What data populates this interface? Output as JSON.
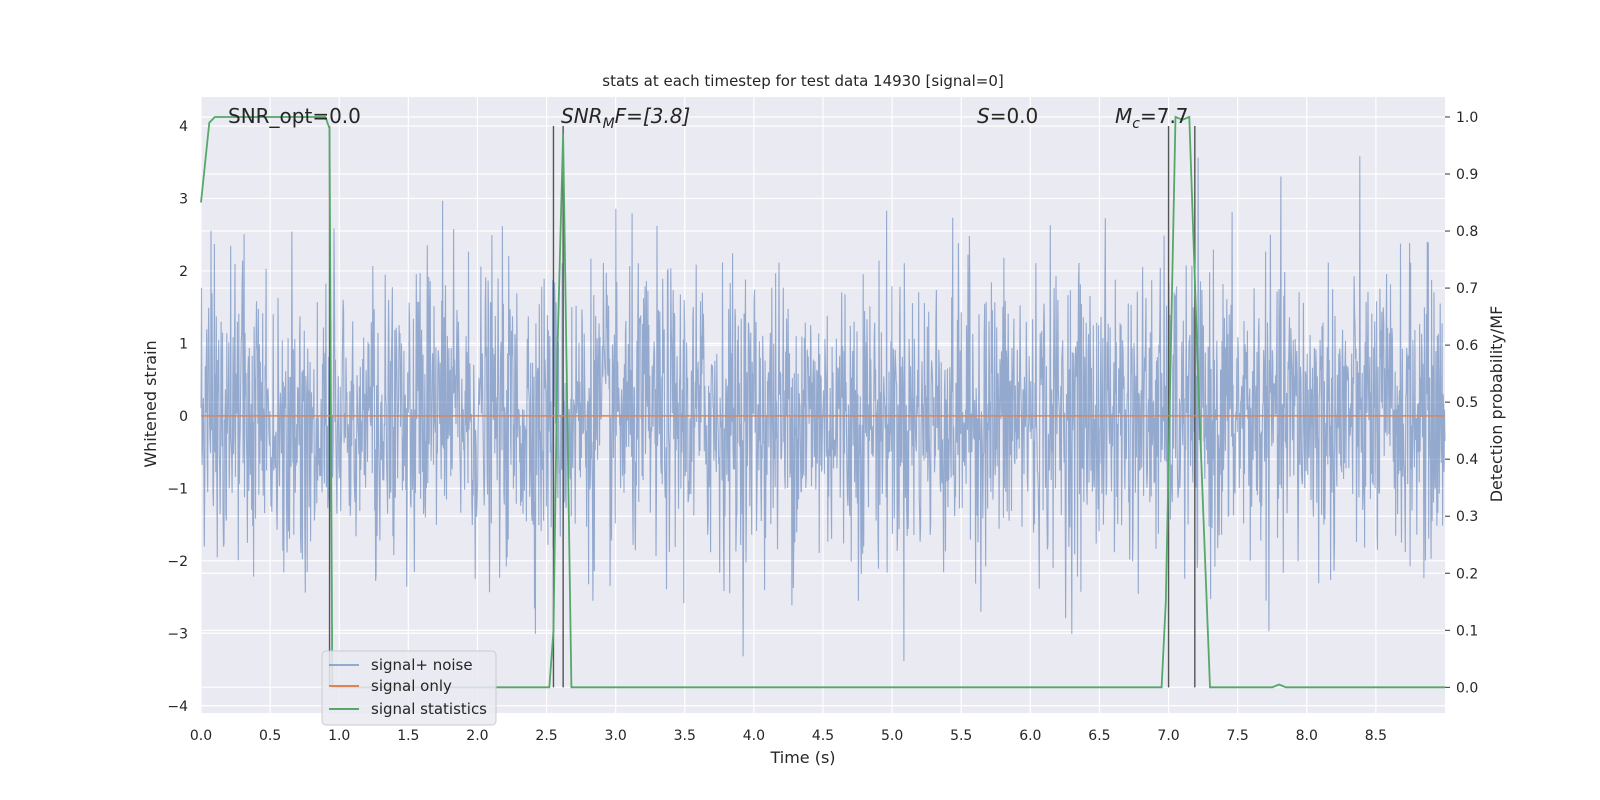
{
  "chart_data": {
    "type": "line",
    "title": "stats at each timestep for test data 14930 [signal=0]",
    "xlabel": "Time (s)",
    "ylabel": "Whitened strain",
    "ylabel_right": "Detection probability/MF",
    "xlim": [
      0,
      9
    ],
    "ylim": [
      -4.1,
      4.4
    ],
    "ylim_right": [
      -0.045,
      1.035
    ],
    "x_ticks": [
      "0.0",
      "0.5",
      "1.0",
      "1.5",
      "2.0",
      "2.5",
      "3.0",
      "3.5",
      "4.0",
      "4.5",
      "5.0",
      "5.5",
      "6.0",
      "6.5",
      "7.0",
      "7.5",
      "8.0",
      "8.5"
    ],
    "y_ticks": [
      "4",
      "3",
      "2",
      "1",
      "0",
      "−1",
      "−2",
      "−3",
      "−4"
    ],
    "y_ticks_right": [
      "1.0",
      "0.9",
      "0.8",
      "0.7",
      "0.6",
      "0.5",
      "0.4",
      "0.3",
      "0.2",
      "0.1",
      "0.0"
    ],
    "grid": true,
    "legend_position": "lower-left",
    "annotations": {
      "snr_opt": "SNR_opt=0.0",
      "snr_mf_main": "SNR",
      "snr_mf_sub": "M",
      "snr_mf_rest": "F=[3.8]",
      "s_main": "S",
      "s_rest": "=0.0",
      "mc_main": "M",
      "mc_sub": "c",
      "mc_rest": "=7.7"
    },
    "series": [
      {
        "name": "signal+ noise",
        "color": "#4c72b0",
        "noise_std": 1.0,
        "duration_s": 9.0
      },
      {
        "name": "signal only",
        "color": "#dd8452",
        "x": [
          0,
          9
        ],
        "y": [
          0,
          0
        ]
      },
      {
        "name": "signal statistics",
        "color": "#55a868",
        "axis": "right",
        "x": [
          0,
          0.06,
          0.1,
          0.9,
          0.93,
          0.95,
          1.0,
          2.4,
          2.52,
          2.55,
          2.58,
          2.62,
          2.68,
          2.75,
          6.95,
          6.98,
          7.05,
          7.1,
          7.15,
          7.22,
          7.3,
          7.75,
          7.8,
          7.85,
          9
        ],
        "y": [
          0.85,
          0.99,
          1.0,
          1.0,
          0.98,
          0.0,
          0.0,
          0.0,
          0.0,
          0.1,
          0.6,
          0.97,
          0.0,
          0.0,
          0.0,
          0.15,
          1.0,
          0.995,
          1.0,
          0.5,
          0.0,
          0.0,
          0.005,
          0.0,
          0.0
        ]
      }
    ],
    "vertical_lines_x": [
      0.93,
      2.55,
      2.62,
      7.0,
      7.19
    ],
    "colors": {
      "background": "#eaeaf2",
      "grid": "#ffffff",
      "marker_line": "#555555"
    }
  }
}
